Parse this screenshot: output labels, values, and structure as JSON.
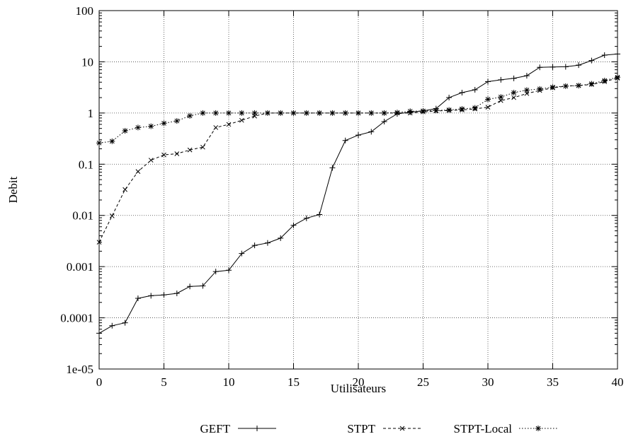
{
  "chart_data": {
    "type": "line",
    "title": "",
    "xlabel": "Utilisateurs",
    "ylabel": "Debit",
    "xlim": [
      0,
      40
    ],
    "ylim": [
      1e-05,
      100
    ],
    "yscale": "log",
    "grid": true,
    "legend_position": "bottom",
    "xticks": [
      0,
      5,
      10,
      15,
      20,
      25,
      30,
      35,
      40
    ],
    "xtick_labels": [
      "0",
      "5",
      "10",
      "15",
      "20",
      "25",
      "30",
      "35",
      "40"
    ],
    "yticks": [
      1e-05,
      0.0001,
      0.001,
      0.01,
      0.1,
      1,
      10,
      100
    ],
    "ytick_labels": [
      "1e-05",
      "0.0001",
      "0.001",
      "0.01",
      "0.1",
      "1",
      "10",
      "100"
    ],
    "series": [
      {
        "name": "GEFT",
        "marker": "plus",
        "dash": "solid",
        "x": [
          0,
          1,
          2,
          3,
          4,
          5,
          6,
          7,
          8,
          9,
          10,
          11,
          12,
          13,
          14,
          15,
          16,
          17,
          18,
          19,
          20,
          21,
          22,
          23,
          24,
          25,
          26,
          27,
          28,
          29,
          30,
          31,
          32,
          33,
          34,
          35,
          36,
          37,
          38,
          39,
          40
        ],
        "y": [
          5e-05,
          7e-05,
          8e-05,
          0.00024,
          0.00027,
          0.00028,
          0.0003,
          0.00041,
          0.00042,
          0.0008,
          0.00085,
          0.0018,
          0.0026,
          0.0029,
          0.0036,
          0.0064,
          0.0088,
          0.0104,
          0.085,
          0.29,
          0.37,
          0.43,
          0.68,
          0.96,
          1.04,
          1.1,
          1.22,
          2.0,
          2.5,
          2.84,
          4.1,
          4.45,
          4.75,
          5.35,
          7.8,
          7.9,
          8.0,
          8.6,
          10.6,
          13.5,
          14.2
        ]
      },
      {
        "name": "STPT",
        "marker": "x",
        "dash": "dashed",
        "x": [
          0,
          1,
          2,
          3,
          4,
          5,
          6,
          7,
          8,
          9,
          10,
          11,
          12,
          13,
          14,
          15,
          16,
          17,
          18,
          19,
          20,
          21,
          22,
          23,
          24,
          25,
          26,
          27,
          28,
          29,
          30,
          31,
          32,
          33,
          34,
          35,
          36,
          37,
          38,
          39,
          40
        ],
        "y": [
          0.003,
          0.0098,
          0.032,
          0.072,
          0.12,
          0.152,
          0.16,
          0.19,
          0.215,
          0.52,
          0.6,
          0.72,
          0.87,
          1.0,
          1.0,
          1.0,
          1.0,
          1.0,
          1.0,
          1.0,
          1.0,
          1.0,
          1.0,
          1.0,
          1.0,
          1.05,
          1.1,
          1.12,
          1.15,
          1.2,
          1.3,
          1.75,
          2.0,
          2.4,
          2.75,
          3.1,
          3.35,
          3.45,
          3.6,
          4.1,
          4.8
        ]
      },
      {
        "name": "STPT-Local",
        "marker": "star",
        "dash": "dotted",
        "x": [
          0,
          1,
          2,
          3,
          4,
          5,
          6,
          7,
          8,
          9,
          10,
          11,
          12,
          13,
          14,
          15,
          16,
          17,
          18,
          19,
          20,
          21,
          22,
          23,
          24,
          25,
          26,
          27,
          28,
          29,
          30,
          31,
          32,
          33,
          34,
          35,
          36,
          37,
          38,
          39,
          40
        ],
        "y": [
          0.26,
          0.28,
          0.45,
          0.52,
          0.55,
          0.63,
          0.7,
          0.88,
          1.0,
          1.0,
          1.0,
          1.0,
          1.0,
          1.0,
          1.0,
          1.0,
          1.0,
          1.0,
          1.0,
          1.0,
          1.0,
          1.0,
          1.0,
          1.02,
          1.08,
          1.1,
          1.12,
          1.15,
          1.2,
          1.26,
          1.85,
          2.05,
          2.5,
          2.8,
          2.95,
          3.2,
          3.35,
          3.42,
          3.72,
          4.3,
          5.0
        ]
      }
    ]
  }
}
